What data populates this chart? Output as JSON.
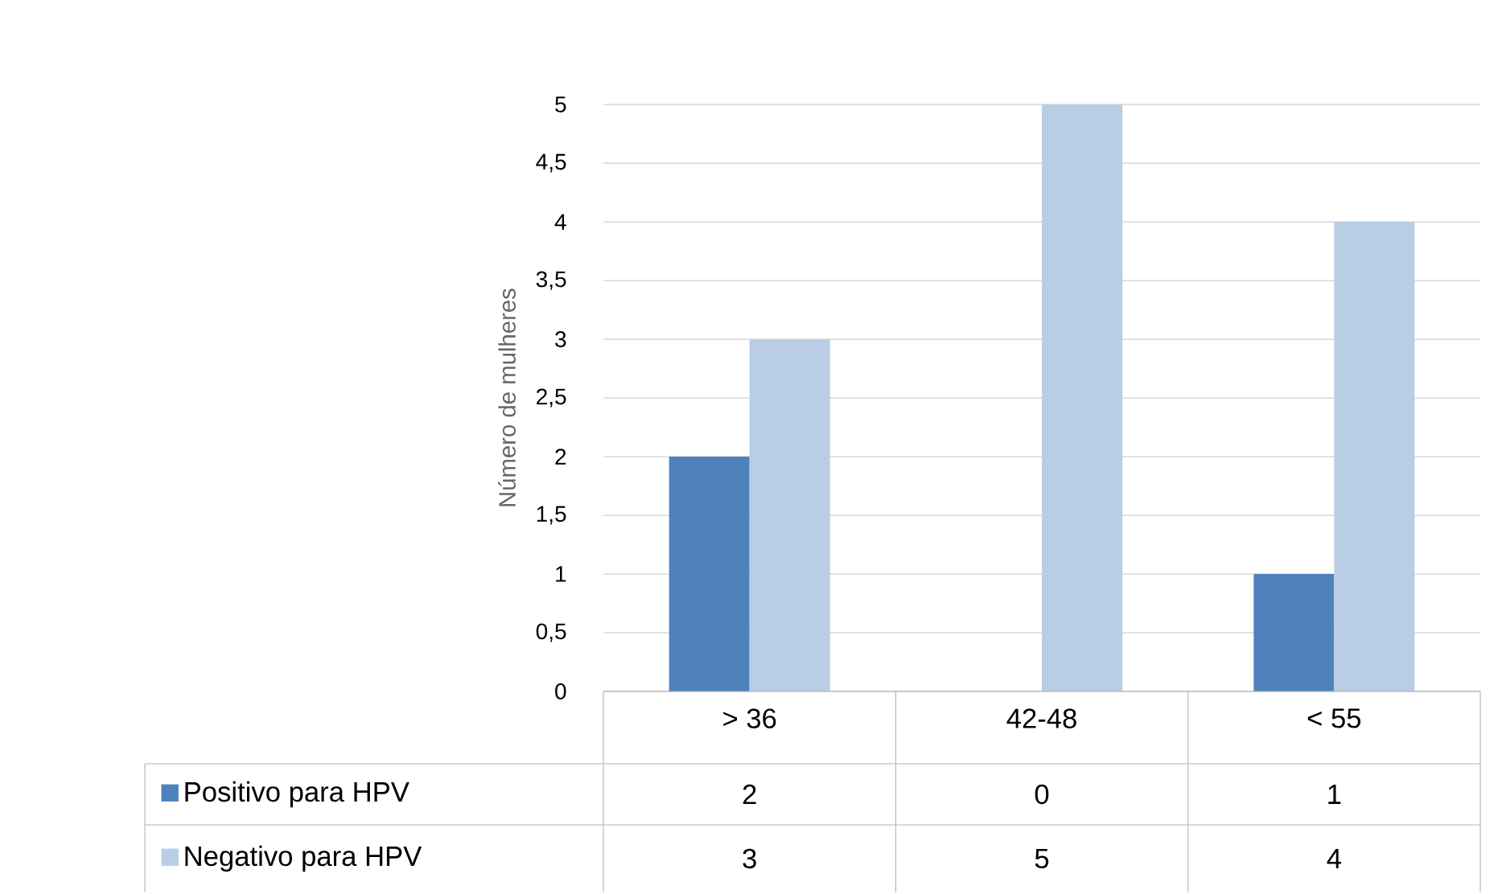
{
  "chart_data": {
    "type": "bar",
    "ylabel": "Número de mulheres",
    "categories": [
      "> 36",
      "42-48",
      "< 55"
    ],
    "series": [
      {
        "name": "Positivo para HPV",
        "color": "#4f81bd",
        "values": [
          2,
          0,
          1
        ]
      },
      {
        "name": "Negativo para HPV",
        "color": "#b9cde5",
        "values": [
          3,
          5,
          4
        ]
      }
    ],
    "ylim": [
      0,
      5
    ],
    "yticks": [
      0,
      {
        "value": 0.5,
        "label": "0,5"
      },
      1,
      {
        "value": 1.5,
        "label": "1,5"
      },
      2,
      {
        "value": 2.5,
        "label": "2,5"
      },
      3,
      {
        "value": 3.5,
        "label": "3,5"
      },
      4,
      {
        "value": 4.5,
        "label": "4,5"
      },
      5
    ],
    "grid": "y",
    "legend": "bottom",
    "data_labels": true
  }
}
